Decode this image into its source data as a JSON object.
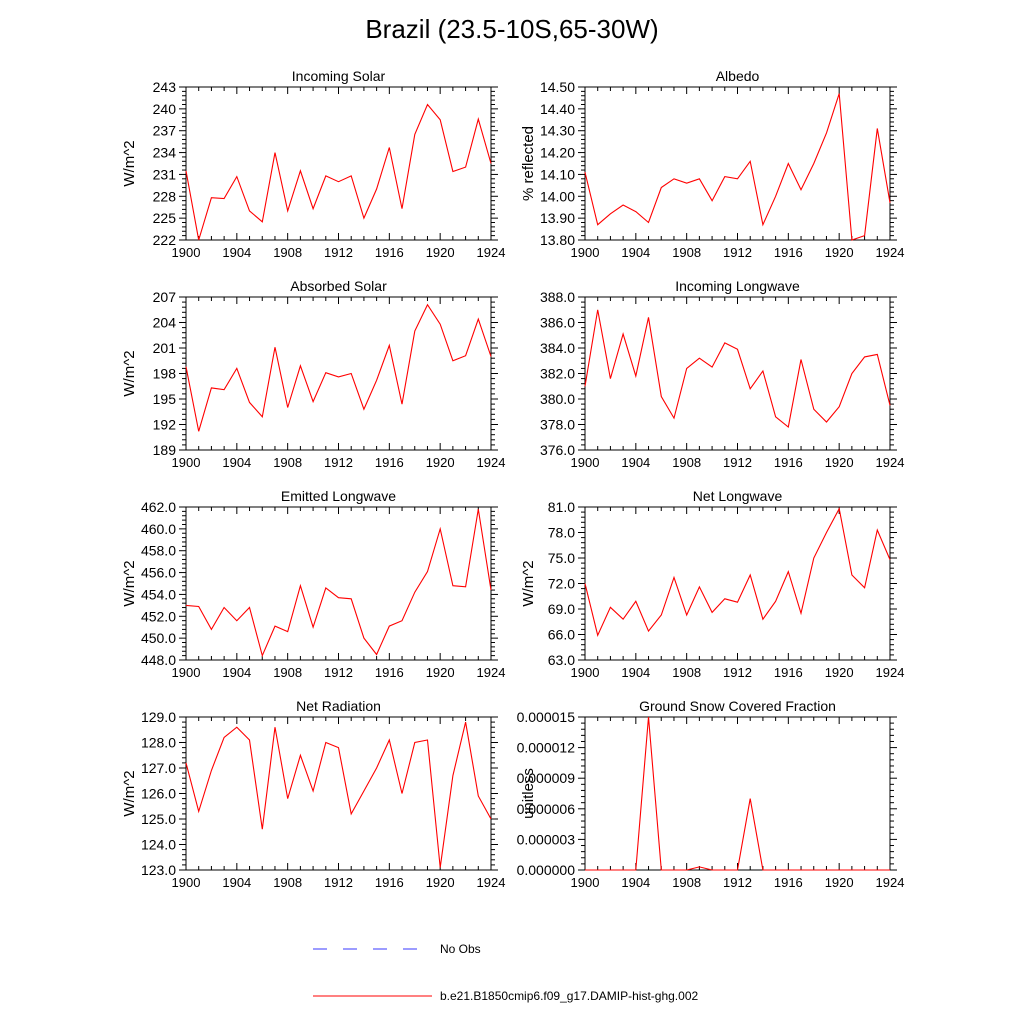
{
  "title": "Brazil (23.5-10S,65-30W)",
  "colors": {
    "series": "#ff0000",
    "obs": "#3a3aff",
    "axis": "#000000"
  },
  "legend": [
    {
      "label": "No Obs",
      "style": "dashed",
      "color": "#3a3aff"
    },
    {
      "label": "b.e21.B1850cmip6.f09_g17.DAMIP-hist-ghg.002",
      "style": "solid",
      "color": "#ff0000"
    }
  ],
  "chart_data": [
    {
      "type": "line",
      "title": "Incoming Solar",
      "ylabel": "W/m^2",
      "xlim": [
        1900,
        1924
      ],
      "ylim": [
        222,
        243
      ],
      "xticks": [
        "1900",
        "1904",
        "1908",
        "1912",
        "1916",
        "1920",
        "1924"
      ],
      "yticks": [
        "222",
        "225",
        "228",
        "231",
        "234",
        "237",
        "240",
        "243"
      ],
      "series": [
        {
          "x": [
            1900,
            1901,
            1902,
            1903,
            1904,
            1905,
            1906,
            1907,
            1908,
            1909,
            1910,
            1911,
            1912,
            1913,
            1914,
            1915,
            1916,
            1917,
            1918,
            1919,
            1920,
            1921,
            1922,
            1923,
            1924
          ],
          "values": [
            231.5,
            222.0,
            227.8,
            227.7,
            230.7,
            226.0,
            224.5,
            234.0,
            226.0,
            231.5,
            226.3,
            230.8,
            230.0,
            230.8,
            225.0,
            229.0,
            234.7,
            226.3,
            236.5,
            240.6,
            238.5,
            231.4,
            232.0,
            238.6,
            232.5
          ]
        }
      ]
    },
    {
      "type": "line",
      "title": "Albedo",
      "ylabel": "% reflected",
      "xlim": [
        1900,
        1924
      ],
      "ylim": [
        13.8,
        14.5
      ],
      "xticks": [
        "1900",
        "1904",
        "1908",
        "1912",
        "1916",
        "1920",
        "1924"
      ],
      "yticks": [
        "13.80",
        "13.90",
        "14.00",
        "14.10",
        "14.20",
        "14.30",
        "14.40",
        "14.50"
      ],
      "series": [
        {
          "x": [
            1900,
            1901,
            1902,
            1903,
            1904,
            1905,
            1906,
            1907,
            1908,
            1909,
            1910,
            1911,
            1912,
            1913,
            1914,
            1915,
            1916,
            1917,
            1918,
            1919,
            1920,
            1921,
            1922,
            1923,
            1924
          ],
          "values": [
            14.11,
            13.87,
            13.92,
            13.96,
            13.93,
            13.88,
            14.04,
            14.08,
            14.06,
            14.08,
            13.98,
            14.09,
            14.08,
            14.16,
            13.87,
            14.0,
            14.15,
            14.03,
            14.15,
            14.29,
            14.47,
            13.8,
            13.82,
            14.31,
            13.97
          ]
        }
      ]
    },
    {
      "type": "line",
      "title": "Absorbed Solar",
      "ylabel": "W/m^2",
      "xlim": [
        1900,
        1924
      ],
      "ylim": [
        189,
        207
      ],
      "xticks": [
        "1900",
        "1904",
        "1908",
        "1912",
        "1916",
        "1920",
        "1924"
      ],
      "yticks": [
        "189",
        "192",
        "195",
        "198",
        "201",
        "204",
        "207"
      ],
      "series": [
        {
          "x": [
            1900,
            1901,
            1902,
            1903,
            1904,
            1905,
            1906,
            1907,
            1908,
            1909,
            1910,
            1911,
            1912,
            1913,
            1914,
            1915,
            1916,
            1917,
            1918,
            1919,
            1920,
            1921,
            1922,
            1923,
            1924
          ],
          "values": [
            198.8,
            191.2,
            196.3,
            196.1,
            198.6,
            194.6,
            192.9,
            201.1,
            194.0,
            198.9,
            194.7,
            198.1,
            197.6,
            198.0,
            193.8,
            197.2,
            201.3,
            194.4,
            203.0,
            206.1,
            203.8,
            199.5,
            200.1,
            204.4,
            200.0
          ]
        }
      ]
    },
    {
      "type": "line",
      "title": "Incoming Longwave",
      "ylabel": "",
      "xlim": [
        1900,
        1924
      ],
      "ylim": [
        376.0,
        388.0
      ],
      "xticks": [
        "1900",
        "1904",
        "1908",
        "1912",
        "1916",
        "1920",
        "1924"
      ],
      "yticks": [
        "376.0",
        "378.0",
        "380.0",
        "382.0",
        "384.0",
        "386.0",
        "388.0"
      ],
      "series": [
        {
          "x": [
            1900,
            1901,
            1902,
            1903,
            1904,
            1905,
            1906,
            1907,
            1908,
            1909,
            1910,
            1911,
            1912,
            1913,
            1914,
            1915,
            1916,
            1917,
            1918,
            1919,
            1920,
            1921,
            1922,
            1923,
            1924
          ],
          "values": [
            381.0,
            387.0,
            381.6,
            385.1,
            381.8,
            386.4,
            380.2,
            378.5,
            382.4,
            383.2,
            382.5,
            384.4,
            383.9,
            380.8,
            382.2,
            378.6,
            377.8,
            383.1,
            379.2,
            378.2,
            379.4,
            382.0,
            383.3,
            383.5,
            379.5
          ]
        }
      ]
    },
    {
      "type": "line",
      "title": "Emitted Longwave",
      "ylabel": "W/m^2",
      "xlim": [
        1900,
        1924
      ],
      "ylim": [
        448.0,
        462.0
      ],
      "xticks": [
        "1900",
        "1904",
        "1908",
        "1912",
        "1916",
        "1920",
        "1924"
      ],
      "yticks": [
        "448.0",
        "450.0",
        "452.0",
        "454.0",
        "456.0",
        "458.0",
        "460.0",
        "462.0"
      ],
      "series": [
        {
          "x": [
            1900,
            1901,
            1902,
            1903,
            1904,
            1905,
            1906,
            1907,
            1908,
            1909,
            1910,
            1911,
            1912,
            1913,
            1914,
            1915,
            1916,
            1917,
            1918,
            1919,
            1920,
            1921,
            1922,
            1923,
            1924
          ],
          "values": [
            453.0,
            452.9,
            450.8,
            452.8,
            451.6,
            452.8,
            448.4,
            451.1,
            450.6,
            454.8,
            451.0,
            454.6,
            453.7,
            453.6,
            450.0,
            448.5,
            451.1,
            451.6,
            454.2,
            456.1,
            460.0,
            454.8,
            454.7,
            461.8,
            454.4
          ]
        }
      ]
    },
    {
      "type": "line",
      "title": "Net Longwave",
      "ylabel": "W/m^2",
      "xlim": [
        1900,
        1924
      ],
      "ylim": [
        63.0,
        81.0
      ],
      "xticks": [
        "1900",
        "1904",
        "1908",
        "1912",
        "1916",
        "1920",
        "1924"
      ],
      "yticks": [
        "63.0",
        "66.0",
        "69.0",
        "72.0",
        "75.0",
        "78.0",
        "81.0"
      ],
      "series": [
        {
          "x": [
            1900,
            1901,
            1902,
            1903,
            1904,
            1905,
            1906,
            1907,
            1908,
            1909,
            1910,
            1911,
            1912,
            1913,
            1914,
            1915,
            1916,
            1917,
            1918,
            1919,
            1920,
            1921,
            1922,
            1923,
            1924
          ],
          "values": [
            72.0,
            65.9,
            69.2,
            67.8,
            69.9,
            66.4,
            68.3,
            72.7,
            68.3,
            71.6,
            68.6,
            70.2,
            69.8,
            73.0,
            67.8,
            69.9,
            73.4,
            68.5,
            75.0,
            78.0,
            80.8,
            73.0,
            71.5,
            78.3,
            74.8
          ]
        }
      ]
    },
    {
      "type": "line",
      "title": "Net Radiation",
      "ylabel": "W/m^2",
      "xlim": [
        1900,
        1924
      ],
      "ylim": [
        123.0,
        129.0
      ],
      "xticks": [
        "1900",
        "1904",
        "1908",
        "1912",
        "1916",
        "1920",
        "1924"
      ],
      "yticks": [
        "123.0",
        "124.0",
        "125.0",
        "126.0",
        "127.0",
        "128.0",
        "129.0"
      ],
      "series": [
        {
          "x": [
            1900,
            1901,
            1902,
            1903,
            1904,
            1905,
            1906,
            1907,
            1908,
            1909,
            1910,
            1911,
            1912,
            1913,
            1914,
            1915,
            1916,
            1917,
            1918,
            1919,
            1920,
            1921,
            1922,
            1923,
            1924
          ],
          "values": [
            127.2,
            125.3,
            126.9,
            128.2,
            128.6,
            128.1,
            124.6,
            128.6,
            125.8,
            127.5,
            126.1,
            128.0,
            127.8,
            125.2,
            126.1,
            127.0,
            128.1,
            126.0,
            128.0,
            128.1,
            123.1,
            126.7,
            128.8,
            125.9,
            125.0
          ]
        }
      ]
    },
    {
      "type": "line",
      "title": "Ground Snow Covered Fraction",
      "ylabel": "unitless",
      "xlim": [
        1900,
        1924
      ],
      "ylim": [
        0.0,
        1.5e-05
      ],
      "xticks": [
        "1900",
        "1904",
        "1908",
        "1912",
        "1916",
        "1920",
        "1924"
      ],
      "yticks": [
        "0.000000",
        "0.000003",
        "0.000006",
        "0.000009",
        "0.000012",
        "0.000015"
      ],
      "series": [
        {
          "x": [
            1900,
            1901,
            1902,
            1903,
            1904,
            1905,
            1906,
            1907,
            1908,
            1909,
            1910,
            1911,
            1912,
            1913,
            1914,
            1915,
            1916,
            1917,
            1918,
            1919,
            1920,
            1921,
            1922,
            1923,
            1924
          ],
          "values": [
            0,
            0,
            0,
            0,
            0,
            1.5e-05,
            0,
            0,
            0,
            3e-07,
            0,
            0,
            0,
            7e-06,
            0,
            0,
            0,
            0,
            0,
            0,
            0,
            0,
            0,
            0,
            0
          ]
        }
      ]
    }
  ]
}
